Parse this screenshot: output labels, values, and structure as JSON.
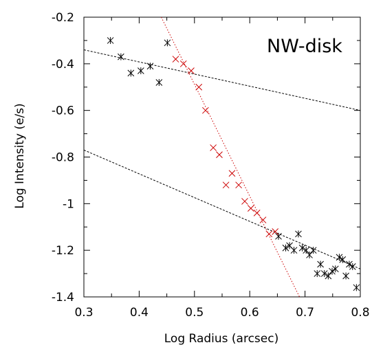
{
  "chart_data": {
    "type": "scatter",
    "panel_label": "NW-disk",
    "xlabel": "Log Radius (arcsec)",
    "ylabel": "Log Intensity (e/s)",
    "xlim": [
      0.3,
      0.8
    ],
    "ylim": [
      -1.4,
      -0.2
    ],
    "x_ticks": [
      "0.3",
      "0.4",
      "0.5",
      "0.6",
      "0.7",
      "0.8"
    ],
    "y_ticks": [
      "-0.2",
      "-0.4",
      "-0.6",
      "-0.8",
      "-1",
      "-1.2",
      "-1.4"
    ],
    "grid": false,
    "colors": {
      "series_black": "#000000",
      "series_red": "#cc0000",
      "fit_black": "#000000",
      "fit_red": "#cc0000"
    },
    "series": [
      {
        "marker": "asterisk",
        "color": "#000000",
        "points": [
          [
            0.348,
            -0.3
          ],
          [
            0.367,
            -0.37
          ],
          [
            0.385,
            -0.44
          ],
          [
            0.403,
            -0.43
          ],
          [
            0.42,
            -0.41
          ],
          [
            0.436,
            -0.48
          ],
          [
            0.451,
            -0.31
          ],
          [
            0.652,
            -1.14
          ],
          [
            0.665,
            -1.19
          ],
          [
            0.672,
            -1.18
          ],
          [
            0.68,
            -1.2
          ],
          [
            0.688,
            -1.13
          ],
          [
            0.695,
            -1.19
          ],
          [
            0.702,
            -1.2
          ],
          [
            0.708,
            -1.22
          ],
          [
            0.715,
            -1.2
          ],
          [
            0.722,
            -1.3
          ],
          [
            0.728,
            -1.26
          ],
          [
            0.735,
            -1.3
          ],
          [
            0.742,
            -1.31
          ],
          [
            0.749,
            -1.29
          ],
          [
            0.755,
            -1.28
          ],
          [
            0.762,
            -1.23
          ],
          [
            0.768,
            -1.24
          ],
          [
            0.774,
            -1.31
          ],
          [
            0.78,
            -1.26
          ],
          [
            0.786,
            -1.27
          ],
          [
            0.793,
            -1.36
          ]
        ]
      },
      {
        "marker": "cross",
        "color": "#cc0000",
        "points": [
          [
            0.466,
            -0.38
          ],
          [
            0.48,
            -0.4
          ],
          [
            0.494,
            -0.43
          ],
          [
            0.508,
            -0.5
          ],
          [
            0.52,
            -0.6
          ],
          [
            0.534,
            -0.76
          ],
          [
            0.545,
            -0.79
          ],
          [
            0.557,
            -0.92
          ],
          [
            0.568,
            -0.87
          ],
          [
            0.58,
            -0.92
          ],
          [
            0.591,
            -0.99
          ],
          [
            0.602,
            -1.02
          ],
          [
            0.613,
            -1.04
          ],
          [
            0.624,
            -1.07
          ],
          [
            0.635,
            -1.13
          ],
          [
            0.646,
            -1.12
          ]
        ]
      }
    ],
    "fits": [
      {
        "style": "dashed",
        "color": "#000000",
        "x": [
          0.3,
          0.8
        ],
        "y": [
          -0.34,
          -0.6
        ]
      },
      {
        "style": "dashed",
        "color": "#000000",
        "x": [
          0.3,
          0.8
        ],
        "y": [
          -0.77,
          -1.28
        ]
      },
      {
        "style": "dotted",
        "color": "#cc0000",
        "x": [
          0.44,
          0.69
        ],
        "y": [
          -0.2,
          -1.4
        ]
      }
    ]
  }
}
